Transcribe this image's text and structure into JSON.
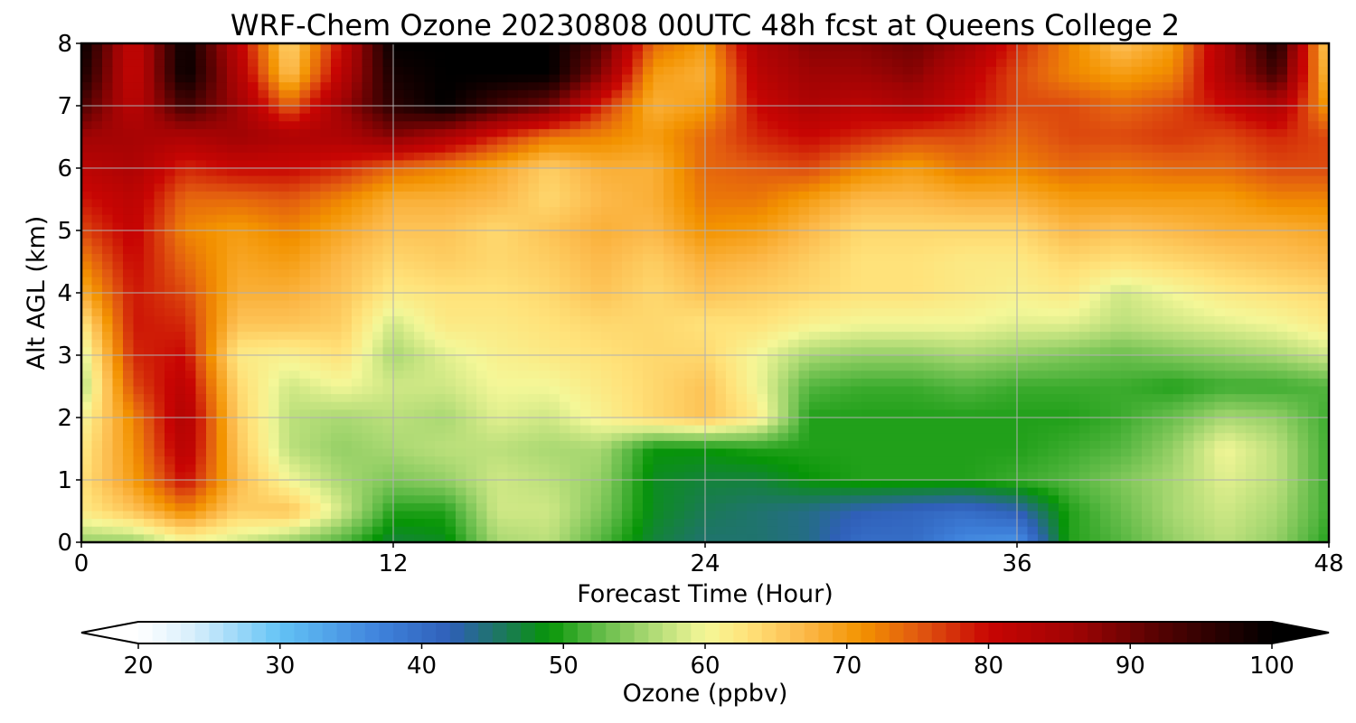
{
  "chart_data": {
    "type": "heatmap",
    "title": "WRF-Chem Ozone  20230808 00UTC 48h fcst at Queens College 2",
    "xlabel": "Forecast Time (Hour)",
    "ylabel": "Alt AGL (km)",
    "xlim": [
      0,
      48
    ],
    "ylim": [
      0,
      8
    ],
    "xticks": [
      0,
      12,
      24,
      36,
      48
    ],
    "yticks": [
      0,
      1,
      2,
      3,
      4,
      5,
      6,
      7,
      8
    ],
    "grid": true,
    "x": [
      0,
      2,
      4,
      6,
      8,
      10,
      12,
      14,
      16,
      18,
      20,
      22,
      24,
      26,
      28,
      30,
      32,
      34,
      36,
      38,
      40,
      42,
      44,
      46,
      48
    ],
    "y": [
      0,
      0.5,
      1,
      1.5,
      2,
      2.5,
      3,
      3.5,
      4,
      4.5,
      5,
      5.5,
      6,
      6.5,
      7,
      7.5,
      8
    ],
    "z": [
      [
        55,
        55,
        60,
        58,
        55,
        52,
        47,
        48,
        56,
        57,
        52,
        47,
        45,
        45,
        44,
        40,
        40,
        36,
        35,
        50,
        52,
        55,
        57,
        55,
        50
      ],
      [
        62,
        66,
        72,
        65,
        66,
        58,
        50,
        50,
        58,
        58,
        54,
        48,
        46,
        45,
        44,
        42,
        41,
        40,
        42,
        50,
        53,
        56,
        58,
        56,
        51
      ],
      [
        63,
        70,
        80,
        67,
        60,
        56,
        54,
        55,
        58,
        57,
        55,
        48,
        47,
        47,
        49,
        50,
        50,
        50,
        51,
        52,
        54,
        56,
        59,
        57,
        51
      ],
      [
        62,
        71,
        83,
        66,
        57,
        55,
        56,
        57,
        57,
        56,
        56,
        49,
        49,
        50,
        50,
        50,
        50,
        50,
        50,
        51,
        52,
        55,
        60,
        57,
        51
      ],
      [
        60,
        72,
        84,
        65,
        57,
        56,
        57,
        56,
        59,
        58,
        61,
        64,
        66,
        62,
        50,
        50,
        50,
        50,
        50,
        50,
        51,
        53,
        56,
        55,
        51
      ],
      [
        56,
        76,
        82,
        64,
        58,
        60,
        58,
        58,
        60,
        60,
        62,
        64,
        66,
        60,
        52,
        51,
        51,
        52,
        51,
        51,
        51,
        50,
        51,
        51,
        52
      ],
      [
        58,
        78,
        80,
        62,
        61,
        63,
        56,
        59,
        61,
        62,
        63,
        64,
        64,
        60,
        56,
        55,
        55,
        56,
        55,
        54,
        53,
        54,
        55,
        56,
        58
      ],
      [
        62,
        79,
        78,
        66,
        66,
        65,
        58,
        62,
        62,
        63,
        64,
        64,
        63,
        63,
        61,
        60,
        60,
        60,
        59,
        59,
        57,
        58,
        59,
        60,
        62
      ],
      [
        68,
        79,
        76,
        68,
        68,
        66,
        62,
        63,
        63,
        64,
        66,
        64,
        66,
        65,
        64,
        63,
        63,
        62,
        61,
        62,
        58,
        60,
        62,
        63,
        64
      ],
      [
        72,
        80,
        74,
        69,
        70,
        67,
        64,
        65,
        64,
        65,
        67,
        65,
        68,
        67,
        65,
        63,
        63,
        62,
        62,
        64,
        63,
        64,
        65,
        66,
        67
      ],
      [
        76,
        81,
        72,
        70,
        72,
        69,
        66,
        66,
        64,
        66,
        68,
        67,
        71,
        70,
        67,
        64,
        64,
        64,
        64,
        67,
        66,
        67,
        68,
        68,
        69
      ],
      [
        79,
        82,
        74,
        74,
        75,
        72,
        68,
        68,
        67,
        64,
        67,
        68,
        73,
        73,
        70,
        67,
        67,
        68,
        68,
        70,
        70,
        70,
        70,
        72,
        72
      ],
      [
        82,
        84,
        78,
        80,
        80,
        78,
        74,
        72,
        69,
        65,
        68,
        68,
        74,
        75,
        76,
        72,
        70,
        73,
        72,
        74,
        73,
        74,
        74,
        76,
        76
      ],
      [
        86,
        85,
        84,
        86,
        84,
        84,
        88,
        84,
        78,
        73,
        72,
        70,
        74,
        78,
        80,
        78,
        76,
        76,
        74,
        76,
        76,
        77,
        76,
        78,
        76
      ],
      [
        93,
        82,
        94,
        86,
        74,
        86,
        96,
        100,
        94,
        90,
        78,
        68,
        70,
        80,
        84,
        82,
        84,
        80,
        76,
        76,
        74,
        76,
        80,
        84,
        70
      ],
      [
        98,
        80,
        100,
        84,
        66,
        82,
        98,
        100,
        100,
        100,
        88,
        70,
        68,
        82,
        86,
        86,
        88,
        82,
        76,
        72,
        70,
        72,
        84,
        94,
        66
      ],
      [
        100,
        80,
        100,
        82,
        64,
        80,
        100,
        100,
        100,
        100,
        92,
        74,
        70,
        84,
        88,
        88,
        90,
        86,
        78,
        72,
        66,
        70,
        84,
        98,
        64
      ]
    ],
    "colorbar": {
      "label": "Ozone  (ppbv)",
      "min": 20,
      "max": 100,
      "ticks": [
        "20",
        "30",
        "40",
        "50",
        "60",
        "70",
        "80",
        "90",
        "100"
      ],
      "extend": "both"
    },
    "colors": {
      "stops": [
        {
          "v": 20,
          "c": "#ffffff"
        },
        {
          "v": 24,
          "c": "#d6eefc"
        },
        {
          "v": 30,
          "c": "#63c3f5"
        },
        {
          "v": 37,
          "c": "#3f82dc"
        },
        {
          "v": 42,
          "c": "#2f5fb8"
        },
        {
          "v": 46,
          "c": "#1a7a55"
        },
        {
          "v": 49,
          "c": "#079507"
        },
        {
          "v": 52,
          "c": "#55b640"
        },
        {
          "v": 56,
          "c": "#a9d872"
        },
        {
          "v": 60,
          "c": "#f4f798"
        },
        {
          "v": 63,
          "c": "#ffe27a"
        },
        {
          "v": 67,
          "c": "#fcb94a"
        },
        {
          "v": 71,
          "c": "#f39300"
        },
        {
          "v": 75,
          "c": "#e25a10"
        },
        {
          "v": 80,
          "c": "#c80503"
        },
        {
          "v": 86,
          "c": "#a00404"
        },
        {
          "v": 93,
          "c": "#4a0202"
        },
        {
          "v": 100,
          "c": "#000000"
        }
      ]
    }
  }
}
